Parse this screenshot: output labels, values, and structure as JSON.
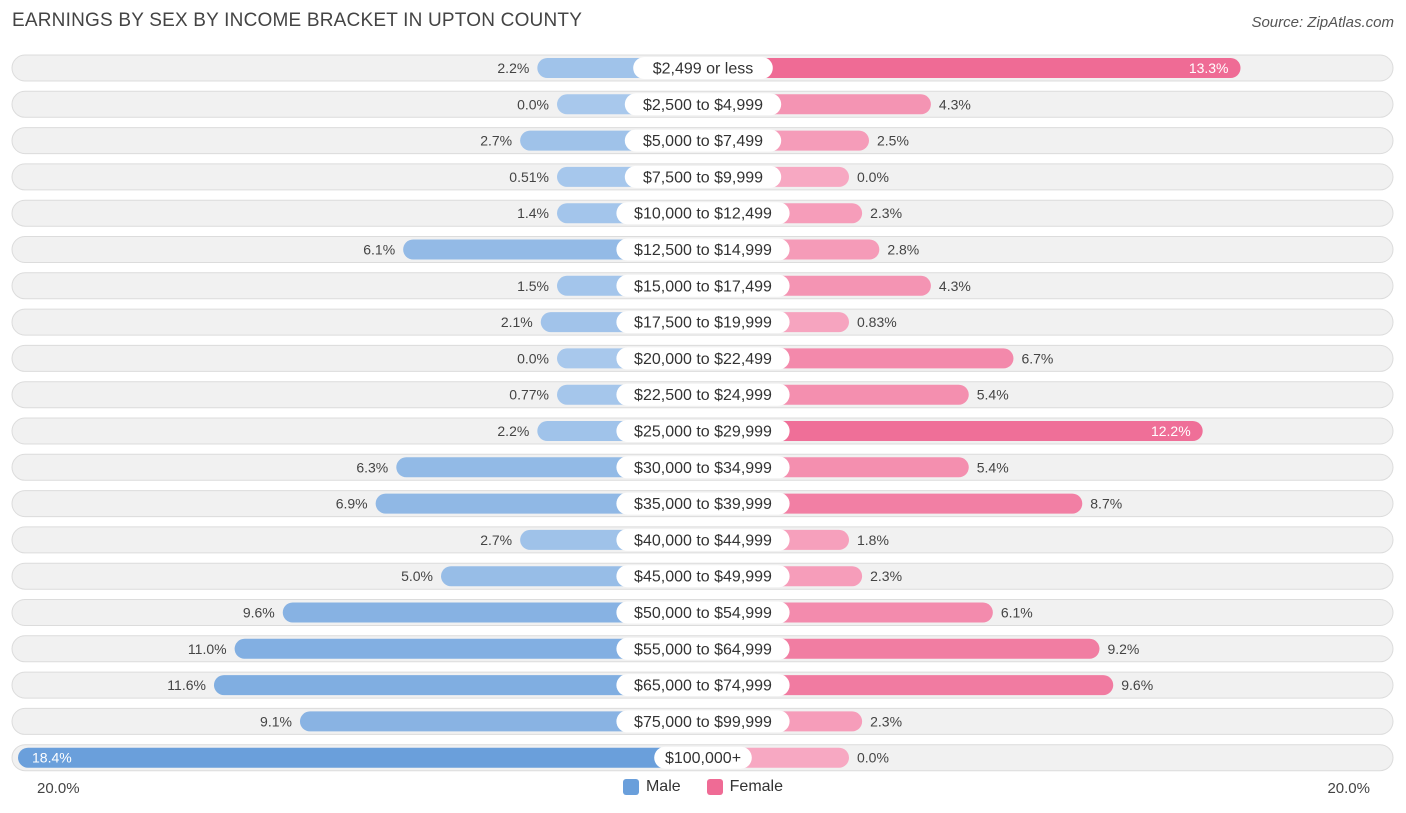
{
  "header": {
    "title": "EARNINGS BY SEX BY INCOME BRACKET IN UPTON COUNTY",
    "source": "Source: ZipAtlas.com"
  },
  "colors": {
    "male_light": "#a8c8ec",
    "male_dark": "#6a9fdb",
    "female_light": "#f7a8c2",
    "female_dark": "#ef6b95",
    "row_bg": "#f1f1f1",
    "row_border": "#dcdcdc"
  },
  "chart_data": {
    "type": "bar",
    "orientation": "horizontal-diverging",
    "title": "EARNINGS BY SEX BY INCOME BRACKET IN UPTON COUNTY",
    "categories": [
      "$2,499 or less",
      "$2,500 to $4,999",
      "$5,000 to $7,499",
      "$7,500 to $9,999",
      "$10,000 to $12,499",
      "$12,500 to $14,999",
      "$15,000 to $17,499",
      "$17,500 to $19,999",
      "$20,000 to $22,499",
      "$22,500 to $24,999",
      "$25,000 to $29,999",
      "$30,000 to $34,999",
      "$35,000 to $39,999",
      "$40,000 to $44,999",
      "$45,000 to $49,999",
      "$50,000 to $54,999",
      "$55,000 to $64,999",
      "$65,000 to $74,999",
      "$75,000 to $99,999",
      "$100,000+"
    ],
    "series": [
      {
        "name": "Male",
        "values": [
          2.2,
          0.0,
          2.7,
          0.51,
          1.4,
          6.1,
          1.5,
          2.1,
          0.0,
          0.77,
          2.2,
          6.3,
          6.9,
          2.7,
          5.0,
          9.6,
          11.0,
          11.6,
          9.1,
          18.4
        ],
        "labels": [
          "2.2%",
          "0.0%",
          "2.7%",
          "0.51%",
          "1.4%",
          "6.1%",
          "1.5%",
          "2.1%",
          "0.0%",
          "0.77%",
          "2.2%",
          "6.3%",
          "6.9%",
          "2.7%",
          "5.0%",
          "9.6%",
          "11.0%",
          "11.6%",
          "9.1%",
          "18.4%"
        ]
      },
      {
        "name": "Female",
        "values": [
          13.3,
          4.3,
          2.5,
          0.0,
          2.3,
          2.8,
          4.3,
          0.83,
          6.7,
          5.4,
          12.2,
          5.4,
          8.7,
          1.8,
          2.3,
          6.1,
          9.2,
          9.6,
          2.3,
          0.0
        ],
        "labels": [
          "13.3%",
          "4.3%",
          "2.5%",
          "0.0%",
          "2.3%",
          "2.8%",
          "4.3%",
          "0.83%",
          "6.7%",
          "5.4%",
          "12.2%",
          "5.4%",
          "8.7%",
          "1.8%",
          "2.3%",
          "6.1%",
          "9.2%",
          "9.6%",
          "2.3%",
          "0.0%"
        ]
      }
    ],
    "xlim": [
      -20,
      20
    ],
    "axis_min_label": "20.0%",
    "axis_max_label": "20.0%",
    "legend": [
      "Male",
      "Female"
    ],
    "legend_position": "bottom-center"
  }
}
